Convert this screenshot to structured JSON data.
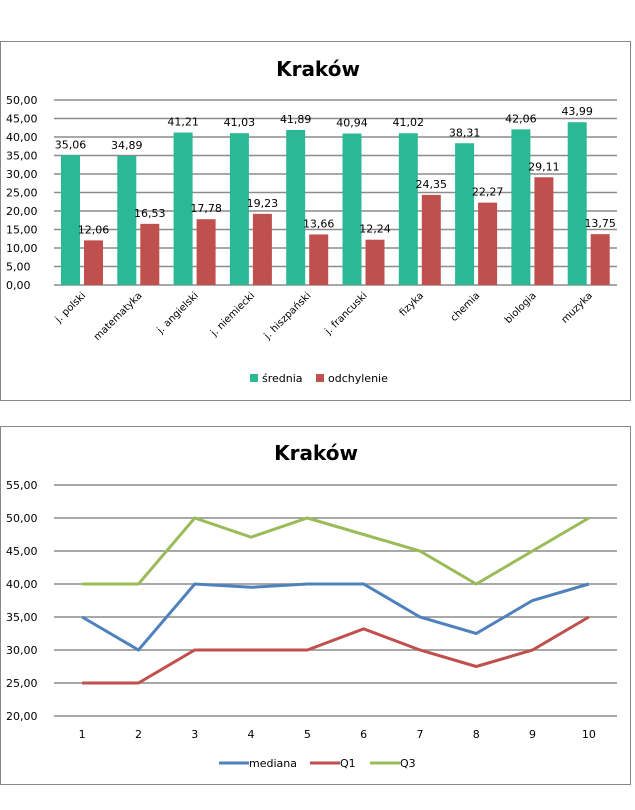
{
  "chart_data": [
    {
      "type": "bar",
      "title": "Kraków",
      "xlabel": "",
      "ylabel": "",
      "ylim": [
        0,
        50
      ],
      "ytick_step": 5,
      "yticks": [
        "0,00",
        "5,00",
        "10,00",
        "15,00",
        "20,00",
        "25,00",
        "30,00",
        "35,00",
        "40,00",
        "45,00",
        "50,00"
      ],
      "grid": true,
      "legend_position": "bottom",
      "categories": [
        "j. polski",
        "matematyka",
        "j. angielski",
        "j. niemiecki",
        "j. hiszpański",
        "j. francuski",
        "fizyka",
        "chemia",
        "biologia",
        "muzyka"
      ],
      "series": [
        {
          "name": "średnia",
          "color": "#2bb895",
          "values": [
            35.06,
            34.89,
            41.21,
            41.03,
            41.89,
            40.94,
            41.02,
            38.31,
            42.06,
            43.99
          ],
          "labels": [
            "35,06",
            "34,89",
            "41,21",
            "41,03",
            "41,89",
            "40,94",
            "41,02",
            "38,31",
            "42,06",
            "43,99"
          ]
        },
        {
          "name": "odchylenie",
          "color": "#c0504d",
          "values": [
            12.06,
            16.53,
            17.78,
            19.23,
            13.66,
            12.24,
            24.35,
            22.27,
            29.11,
            13.75
          ],
          "labels": [
            "12,06",
            "16,53",
            "17,78",
            "19,23",
            "13,66",
            "12,24",
            "24,35",
            "22,27",
            "29,11",
            "13,75"
          ]
        }
      ]
    },
    {
      "type": "line",
      "title": "Kraków",
      "xlabel": "",
      "ylabel": "",
      "ylim": [
        20,
        55
      ],
      "ytick_step": 5,
      "yticks": [
        "20,00",
        "25,00",
        "30,00",
        "35,00",
        "40,00",
        "45,00",
        "50,00",
        "55,00"
      ],
      "grid": true,
      "legend_position": "bottom",
      "x": [
        "1",
        "2",
        "3",
        "4",
        "5",
        "6",
        "7",
        "8",
        "9",
        "10"
      ],
      "series": [
        {
          "name": "mediana",
          "color": "#4f81bd",
          "values": [
            35,
            30,
            40,
            39.5,
            40,
            40,
            35,
            32.5,
            37.5,
            40
          ]
        },
        {
          "name": "Q1",
          "color": "#c0504d",
          "values": [
            25,
            25,
            30,
            30,
            30,
            33.2,
            30,
            27.5,
            30,
            35
          ]
        },
        {
          "name": "Q3",
          "color": "#9bbb59",
          "values": [
            40,
            40,
            50,
            47.1,
            50,
            47.5,
            45,
            40,
            45,
            50
          ]
        }
      ]
    }
  ]
}
